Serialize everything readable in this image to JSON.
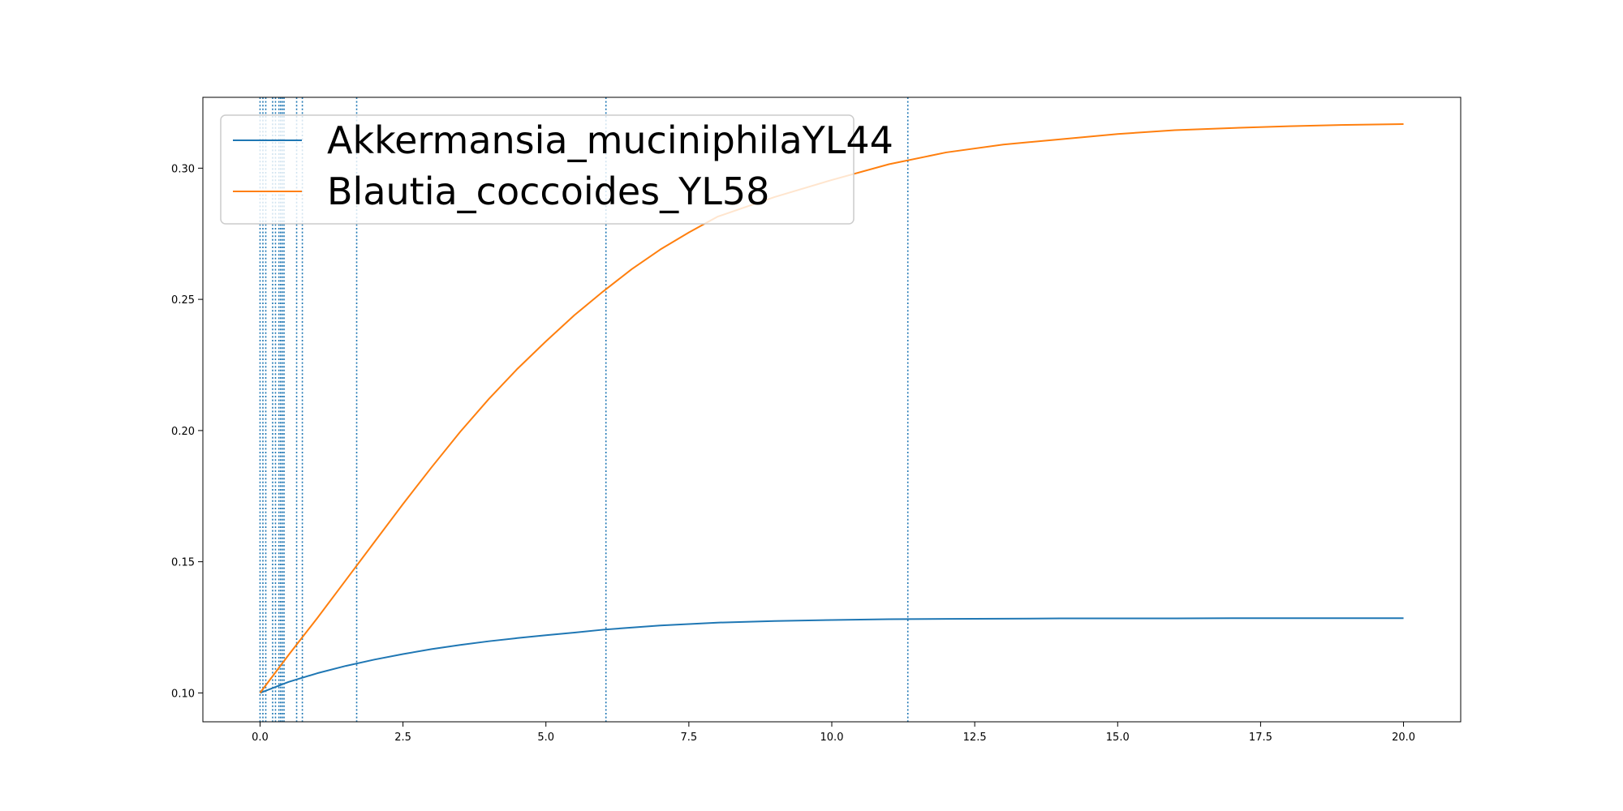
{
  "chart_data": {
    "type": "line",
    "title": "",
    "xlabel": "",
    "ylabel": "",
    "xlim": [
      -1.0,
      21.0
    ],
    "ylim": [
      0.089,
      0.327
    ],
    "x_ticks": [
      0.0,
      2.5,
      5.0,
      7.5,
      10.0,
      12.5,
      15.0,
      17.5,
      20.0
    ],
    "x_tick_labels": [
      "0.0",
      "2.5",
      "5.0",
      "7.5",
      "10.0",
      "12.5",
      "15.0",
      "17.5",
      "20.0"
    ],
    "y_ticks": [
      0.1,
      0.15,
      0.2,
      0.25,
      0.3
    ],
    "y_tick_labels": [
      "0.10",
      "0.15",
      "0.20",
      "0.25",
      "0.30"
    ],
    "grid": false,
    "legend_placement": "upper-left",
    "series": [
      {
        "name": "Akkermansia_muciniphilaYL44",
        "color": "#1f77b4",
        "x": [
          0,
          0.5,
          1,
          1.5,
          2,
          2.5,
          3,
          3.5,
          4,
          4.5,
          5,
          5.5,
          6,
          7,
          8,
          9,
          10,
          11,
          12,
          13,
          14,
          15,
          16,
          17,
          18,
          19,
          20
        ],
        "y": [
          0.1,
          0.1042,
          0.1075,
          0.1103,
          0.1127,
          0.1148,
          0.1167,
          0.1183,
          0.1197,
          0.1209,
          0.122,
          0.123,
          0.1241,
          0.1257,
          0.1268,
          0.1274,
          0.1278,
          0.1281,
          0.1282,
          0.1283,
          0.1284,
          0.1284,
          0.1284,
          0.1285,
          0.1285,
          0.1285,
          0.1285
        ]
      },
      {
        "name": "Blautia_coccoides_YL58",
        "color": "#ff7f0e",
        "x": [
          0,
          0.5,
          1,
          1.5,
          2,
          2.5,
          3,
          3.5,
          4,
          4.5,
          5,
          5.5,
          6,
          6.5,
          7,
          7.5,
          8,
          9,
          10,
          11,
          12,
          13,
          14,
          15,
          16,
          17,
          18,
          19,
          20
        ],
        "y": [
          0.1,
          0.1145,
          0.1285,
          0.143,
          0.1575,
          0.172,
          0.186,
          0.1995,
          0.212,
          0.2235,
          0.234,
          0.244,
          0.253,
          0.2615,
          0.269,
          0.2755,
          0.2815,
          0.289,
          0.2955,
          0.3015,
          0.306,
          0.309,
          0.311,
          0.313,
          0.3145,
          0.3153,
          0.316,
          0.3165,
          0.3168
        ]
      }
    ],
    "vertical_lines": {
      "color": "#1f77b4",
      "style": "dotted",
      "x": [
        0.0,
        0.05,
        0.1,
        0.22,
        0.27,
        0.33,
        0.36,
        0.39,
        0.42,
        0.64,
        0.74,
        1.69,
        6.05,
        11.33
      ]
    }
  }
}
